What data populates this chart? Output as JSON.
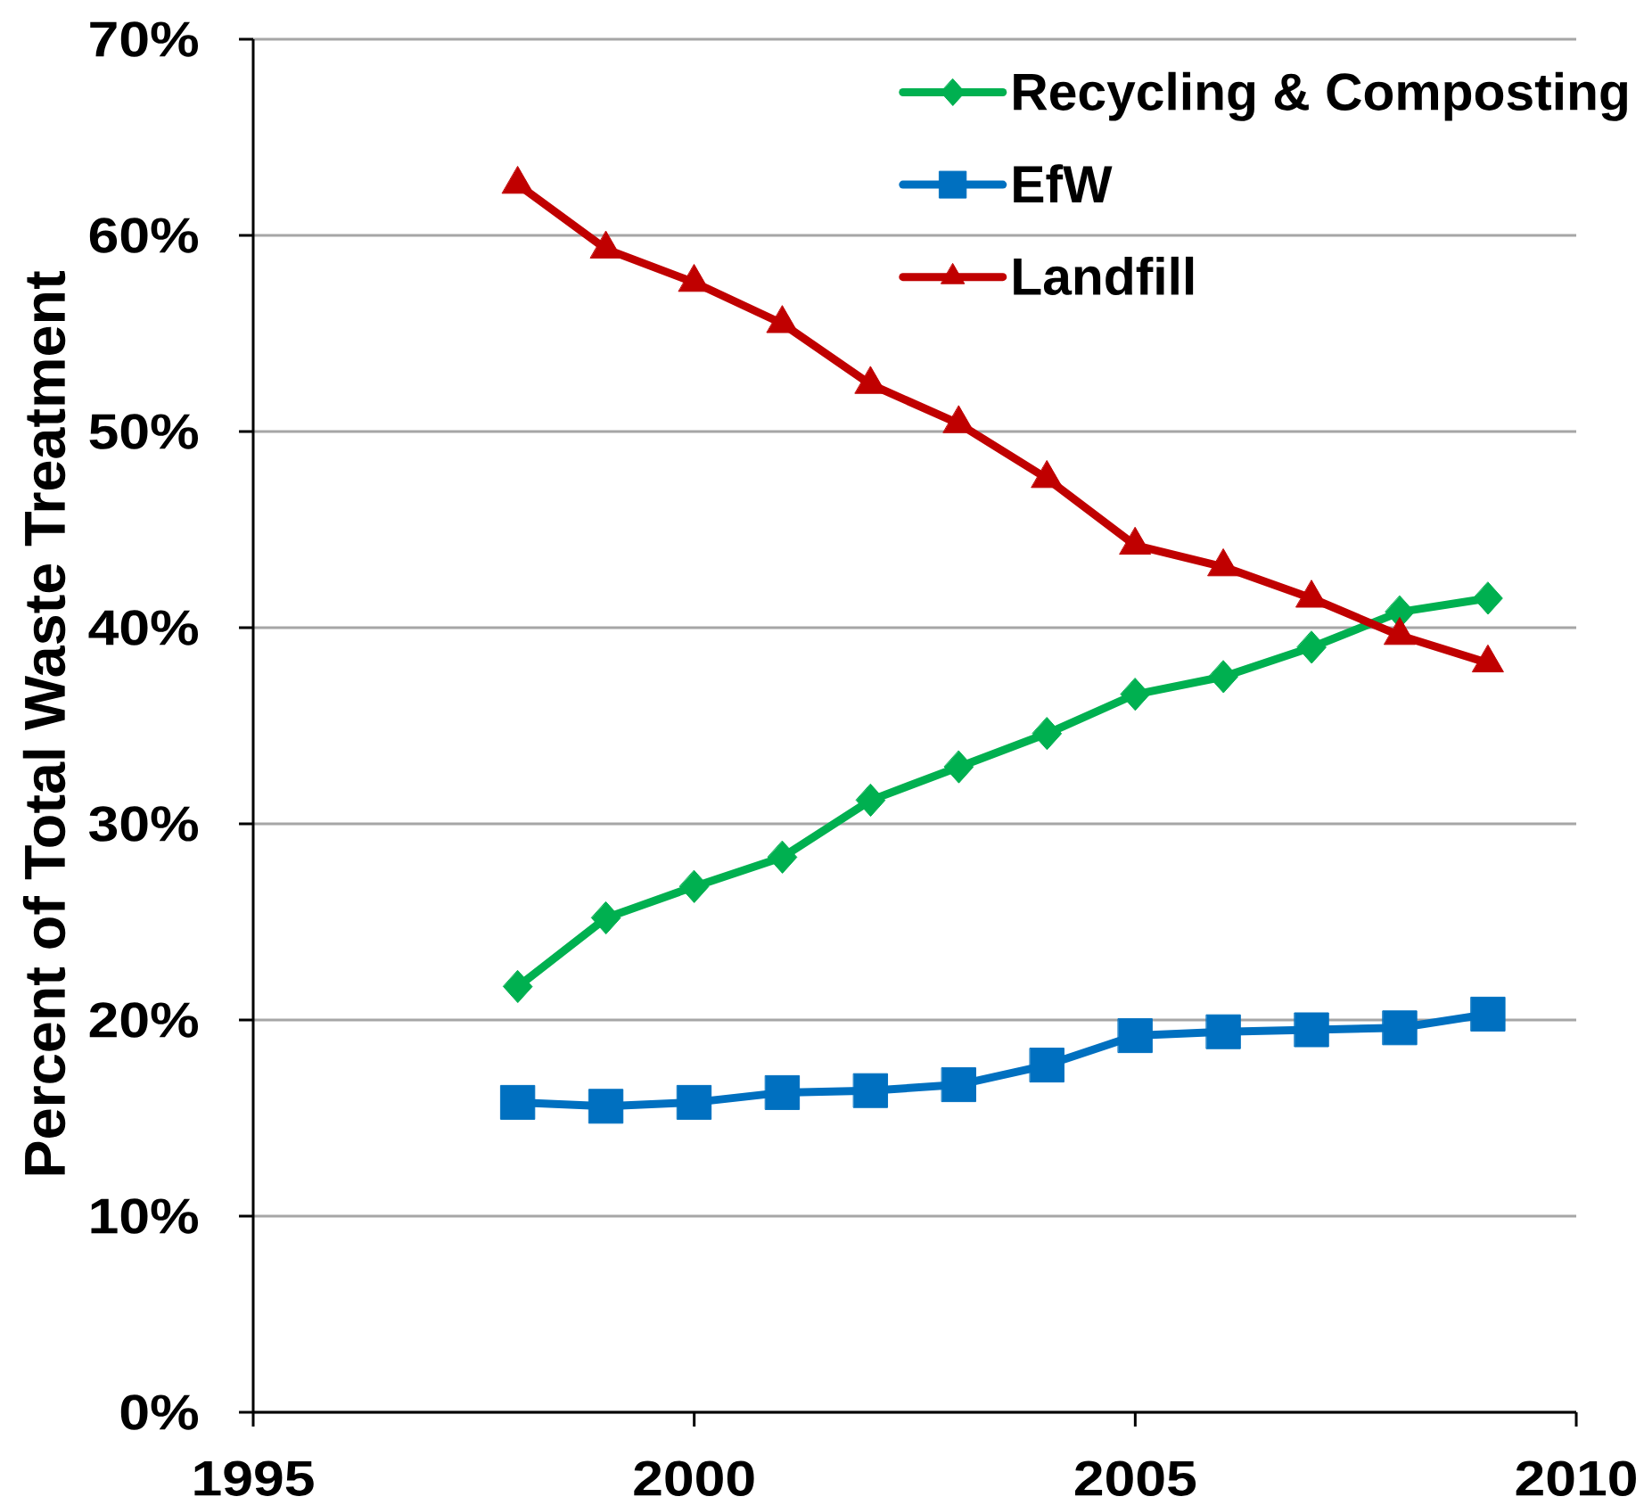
{
  "chart_data": {
    "type": "line",
    "ylabel": "Percent of Total Waste Treatment",
    "x": [
      1998,
      1999,
      2000,
      2001,
      2002,
      2003,
      2004,
      2005,
      2006,
      2007,
      2008,
      2009
    ],
    "series": [
      {
        "name": "Recycling & Composting",
        "color": "#00b050",
        "marker": "diamond",
        "values": [
          21.7,
          25.2,
          26.8,
          28.3,
          31.2,
          32.9,
          34.6,
          36.6,
          37.5,
          39.0,
          40.8,
          41.5
        ]
      },
      {
        "name": "EfW",
        "color": "#0070c0",
        "marker": "square",
        "values": [
          15.8,
          15.6,
          15.8,
          16.3,
          16.4,
          16.7,
          17.7,
          19.2,
          19.4,
          19.5,
          19.6,
          20.3
        ]
      },
      {
        "name": "Landfill",
        "color": "#c00000",
        "marker": "triangle",
        "values": [
          62.6,
          59.3,
          57.6,
          55.5,
          52.4,
          50.4,
          47.6,
          44.2,
          43.1,
          41.5,
          39.6,
          38.2
        ]
      }
    ],
    "xlim": [
      1995,
      2010
    ],
    "xticks": [
      1995,
      2000,
      2005,
      2010
    ],
    "ylim": [
      0,
      70
    ],
    "yticks": [
      {
        "value": 0,
        "label": "0%"
      },
      {
        "value": 10,
        "label": "10%"
      },
      {
        "value": 20,
        "label": "20%"
      },
      {
        "value": 30,
        "label": "30%"
      },
      {
        "value": 40,
        "label": "40%"
      },
      {
        "value": 50,
        "label": "50%"
      },
      {
        "value": 60,
        "label": "60%"
      },
      {
        "value": 70,
        "label": "70%"
      }
    ],
    "grid": "y",
    "legend": "top right"
  }
}
